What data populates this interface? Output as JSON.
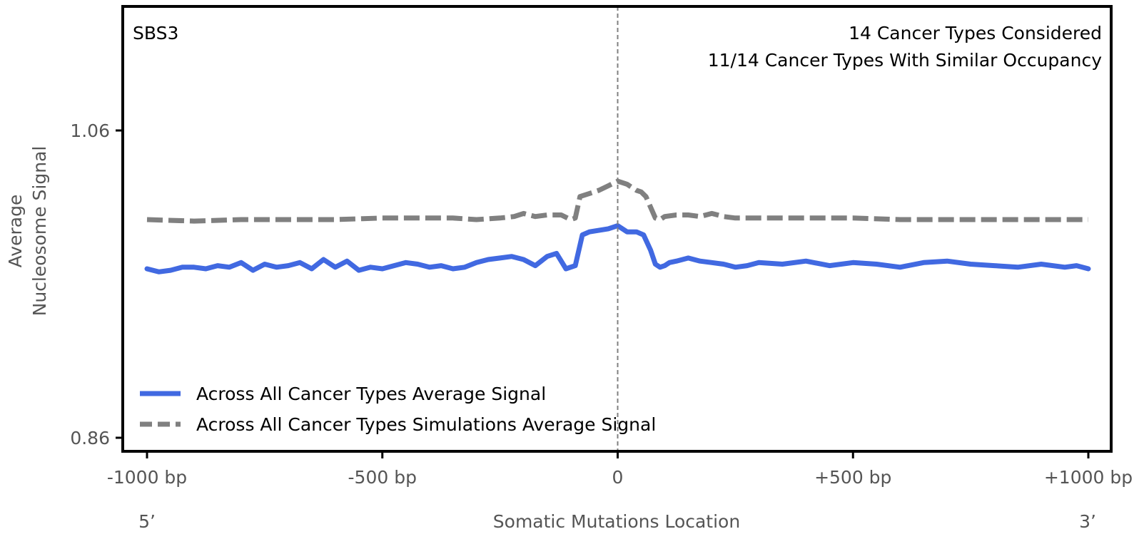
{
  "chart_data": {
    "type": "line",
    "signature_label": "SBS3",
    "annotations": [
      "14 Cancer Types Considered",
      "11/14 Cancer Types With Similar Occupancy"
    ],
    "xlabel": "Somatic Mutations Location",
    "ylabel_lines": [
      "Average",
      "Nucleosome Signal"
    ],
    "strand_labels": {
      "left": "5’",
      "right": "3’"
    },
    "xlim": [
      -1000,
      1000
    ],
    "ylim": [
      0.86,
      1.06
    ],
    "x_ticks": [
      {
        "value": -1000,
        "label": "-1000 bp"
      },
      {
        "value": -500,
        "label": "-500 bp"
      },
      {
        "value": 0,
        "label": "0"
      },
      {
        "value": 500,
        "label": "+500 bp"
      },
      {
        "value": 1000,
        "label": "+1000 bp"
      }
    ],
    "y_ticks": [
      {
        "value": 0.86,
        "label": "0.86"
      },
      {
        "value": 1.06,
        "label": "1.06"
      }
    ],
    "vline_at": 0,
    "legend_placement": "lower-left",
    "series": [
      {
        "name": "Across All Cancer Types Average Signal",
        "color": "#4169e1",
        "style": "solid",
        "x": [
          -1000,
          -975,
          -950,
          -925,
          -900,
          -875,
          -850,
          -825,
          -800,
          -775,
          -750,
          -725,
          -700,
          -675,
          -650,
          -625,
          -600,
          -575,
          -550,
          -525,
          -500,
          -475,
          -450,
          -425,
          -400,
          -375,
          -350,
          -325,
          -300,
          -275,
          -250,
          -225,
          -200,
          -175,
          -150,
          -130,
          -110,
          -90,
          -75,
          -60,
          -40,
          -20,
          0,
          20,
          40,
          55,
          70,
          80,
          90,
          100,
          110,
          125,
          150,
          175,
          200,
          225,
          250,
          275,
          300,
          350,
          400,
          450,
          500,
          550,
          600,
          650,
          700,
          750,
          800,
          850,
          900,
          950,
          975,
          1000
        ],
        "y": [
          0.97,
          0.968,
          0.969,
          0.971,
          0.971,
          0.97,
          0.972,
          0.971,
          0.974,
          0.969,
          0.973,
          0.971,
          0.972,
          0.974,
          0.97,
          0.976,
          0.971,
          0.975,
          0.969,
          0.971,
          0.97,
          0.972,
          0.974,
          0.973,
          0.971,
          0.972,
          0.97,
          0.971,
          0.974,
          0.976,
          0.977,
          0.978,
          0.976,
          0.972,
          0.978,
          0.98,
          0.97,
          0.972,
          0.992,
          0.994,
          0.995,
          0.996,
          0.998,
          0.994,
          0.994,
          0.992,
          0.982,
          0.973,
          0.971,
          0.972,
          0.974,
          0.975,
          0.977,
          0.975,
          0.974,
          0.973,
          0.971,
          0.972,
          0.974,
          0.973,
          0.975,
          0.972,
          0.974,
          0.973,
          0.971,
          0.974,
          0.975,
          0.973,
          0.972,
          0.971,
          0.973,
          0.971,
          0.972,
          0.97
        ]
      },
      {
        "name": "Across All Cancer Types Simulations Average Signal",
        "color": "#808080",
        "style": "dashed",
        "x": [
          -1000,
          -900,
          -800,
          -700,
          -600,
          -500,
          -450,
          -400,
          -350,
          -300,
          -250,
          -220,
          -200,
          -175,
          -150,
          -120,
          -100,
          -90,
          -80,
          -60,
          -40,
          -20,
          0,
          20,
          40,
          50,
          60,
          70,
          80,
          90,
          100,
          125,
          150,
          175,
          200,
          225,
          250,
          300,
          400,
          500,
          600,
          700,
          800,
          900,
          1000
        ],
        "y": [
          1.002,
          1.001,
          1.002,
          1.002,
          1.002,
          1.003,
          1.003,
          1.003,
          1.003,
          1.002,
          1.003,
          1.004,
          1.006,
          1.004,
          1.005,
          1.005,
          1.002,
          1.003,
          1.017,
          1.019,
          1.021,
          1.024,
          1.027,
          1.025,
          1.021,
          1.02,
          1.017,
          1.01,
          1.003,
          1.002,
          1.004,
          1.005,
          1.005,
          1.004,
          1.006,
          1.004,
          1.003,
          1.003,
          1.003,
          1.003,
          1.002,
          1.002,
          1.002,
          1.002,
          1.002
        ]
      }
    ]
  }
}
